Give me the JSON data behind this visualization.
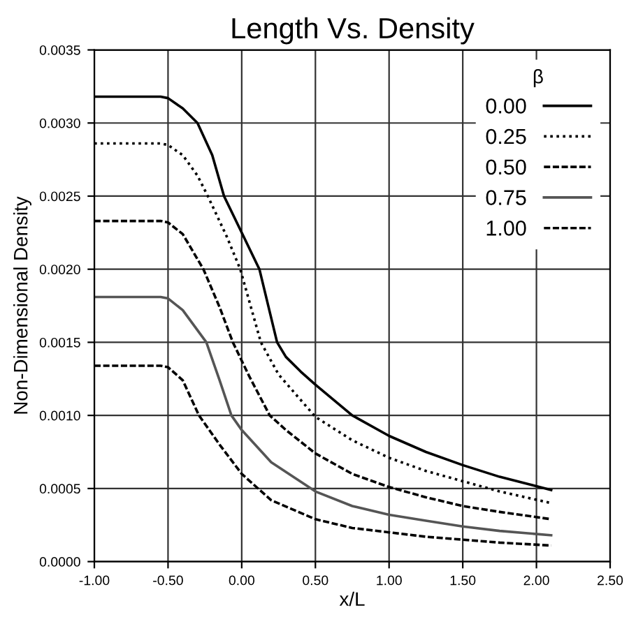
{
  "chart_data": {
    "type": "line",
    "title": "Length Vs. Density",
    "xlabel": "x/L",
    "ylabel": "Non-Dimensional Density",
    "legend_title": "β",
    "legend": "top right",
    "grid": true,
    "marker": "none",
    "xlim": [
      -1.0,
      2.5
    ],
    "xticks": [
      {
        "value": -1.0,
        "label": "-1.00"
      },
      {
        "value": -0.5,
        "label": "-0.50"
      },
      {
        "value": 0.0,
        "label": "0.00"
      },
      {
        "value": 0.5,
        "label": "0.50"
      },
      {
        "value": 1.0,
        "label": "1.00"
      },
      {
        "value": 1.5,
        "label": "1.50"
      },
      {
        "value": 2.0,
        "label": "2.00"
      },
      {
        "value": 2.5,
        "label": "2.50"
      }
    ],
    "ylim": [
      0.0,
      0.0035
    ],
    "yticks": [
      {
        "value": 0.0,
        "label": "0.0000"
      },
      {
        "value": 0.0005,
        "label": "0.0005"
      },
      {
        "value": 0.001,
        "label": "0.0010"
      },
      {
        "value": 0.0015,
        "label": "0.0015"
      },
      {
        "value": 0.002,
        "label": "0.0020"
      },
      {
        "value": 0.0025,
        "label": "0.0025"
      },
      {
        "value": 0.003,
        "label": "0.0030"
      },
      {
        "value": 0.0035,
        "label": "0.0035"
      }
    ],
    "series": [
      {
        "name": "0.00",
        "color": "#000000",
        "line_style": "solid",
        "x": [
          -1.0,
          -0.55,
          -0.5,
          -0.4,
          -0.3,
          -0.2,
          -0.12,
          0.0,
          0.12,
          0.24,
          0.3,
          0.4,
          0.5,
          0.75,
          1.0,
          1.25,
          1.5,
          1.75,
          2.1
        ],
        "values": [
          0.00318,
          0.00318,
          0.00317,
          0.0031,
          0.003,
          0.00278,
          0.0025,
          0.00225,
          0.002,
          0.0015,
          0.0014,
          0.0013,
          0.00121,
          0.001,
          0.00086,
          0.00075,
          0.00066,
          0.00058,
          0.00049
        ]
      },
      {
        "name": "0.25",
        "color": "#000000",
        "line_style": "dotted",
        "x": [
          -1.0,
          -0.55,
          -0.5,
          -0.4,
          -0.3,
          -0.23,
          -0.1,
          -0.01,
          0.13,
          0.25,
          0.5,
          0.75,
          1.0,
          1.25,
          1.5,
          1.75,
          2.1
        ],
        "values": [
          0.00286,
          0.00286,
          0.00285,
          0.00278,
          0.00264,
          0.0025,
          0.00222,
          0.002,
          0.0015,
          0.00128,
          0.00099,
          0.00083,
          0.00071,
          0.00062,
          0.00055,
          0.00048,
          0.0004
        ]
      },
      {
        "name": "0.50",
        "color": "#000000",
        "line_style": "dashed",
        "x": [
          -1.0,
          -0.55,
          -0.5,
          -0.4,
          -0.26,
          -0.15,
          -0.06,
          0.05,
          0.19,
          0.3,
          0.5,
          0.75,
          1.0,
          1.25,
          1.5,
          1.75,
          2.1
        ],
        "values": [
          0.00233,
          0.00233,
          0.00232,
          0.00224,
          0.002,
          0.00174,
          0.0015,
          0.00127,
          0.001,
          0.0009,
          0.00074,
          0.0006,
          0.00051,
          0.00044,
          0.00038,
          0.00034,
          0.00029
        ]
      },
      {
        "name": "0.75",
        "color": "#555555",
        "line_style": "solid",
        "x": [
          -1.0,
          -0.55,
          -0.5,
          -0.4,
          -0.24,
          -0.15,
          -0.07,
          0.0,
          0.2,
          0.5,
          0.75,
          1.0,
          1.25,
          1.5,
          1.75,
          2.1
        ],
        "values": [
          0.00181,
          0.00181,
          0.0018,
          0.00172,
          0.0015,
          0.00124,
          0.001,
          0.0009,
          0.00068,
          0.00048,
          0.00038,
          0.00032,
          0.00028,
          0.00024,
          0.00021,
          0.00018
        ]
      },
      {
        "name": "1.00",
        "color": "#000000",
        "line_style": "dashed",
        "x": [
          -1.0,
          -0.55,
          -0.5,
          -0.4,
          -0.29,
          -0.15,
          0.0,
          0.2,
          0.5,
          0.75,
          1.0,
          1.25,
          1.5,
          1.75,
          2.1
        ],
        "values": [
          0.00134,
          0.00134,
          0.00133,
          0.00124,
          0.001,
          0.0008,
          0.0006,
          0.00042,
          0.00029,
          0.00023,
          0.0002,
          0.00017,
          0.00015,
          0.00013,
          0.00011
        ]
      }
    ]
  }
}
